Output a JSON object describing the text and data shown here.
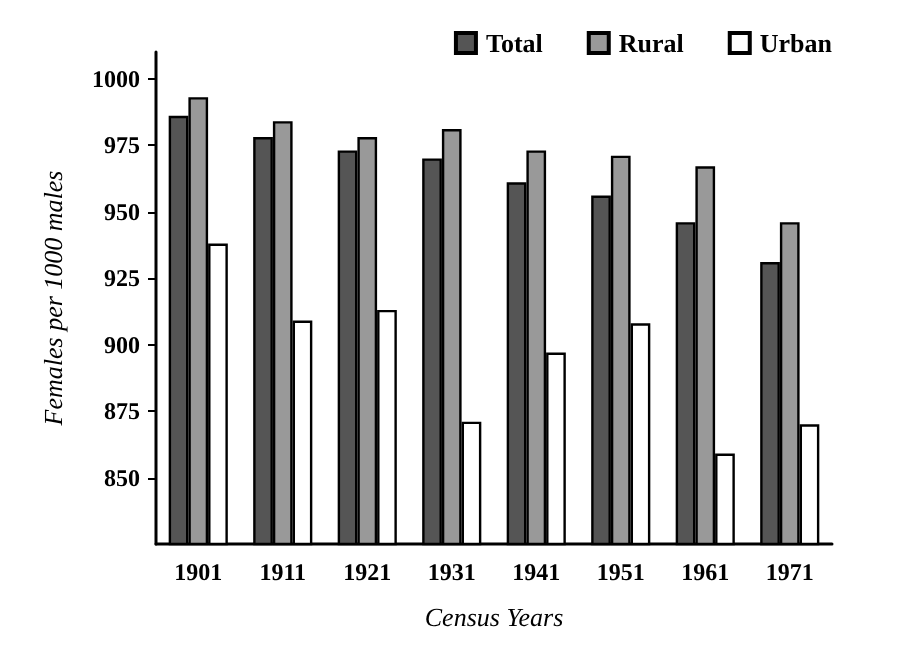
{
  "chart_data": {
    "type": "bar",
    "xlabel": "Census Years",
    "ylabel": "Females per 1000 males",
    "categories": [
      "1901",
      "1911",
      "1921",
      "1931",
      "1941",
      "1951",
      "1961",
      "1971"
    ],
    "series": [
      {
        "name": "Total",
        "color": "#555555",
        "values": [
          986,
          978,
          973,
          970,
          961,
          956,
          946,
          931
        ]
      },
      {
        "name": "Rural",
        "color": "#999999",
        "values": [
          993,
          984,
          978,
          981,
          973,
          971,
          967,
          946
        ]
      },
      {
        "name": "Urban",
        "color": "#ffffff",
        "values": [
          938,
          909,
          913,
          871,
          897,
          908,
          859,
          870
        ]
      }
    ],
    "ylim": [
      825,
      1010
    ],
    "yticks": [
      850,
      875,
      900,
      925,
      950,
      975,
      1000
    ],
    "grid": false,
    "legend": "top right"
  }
}
